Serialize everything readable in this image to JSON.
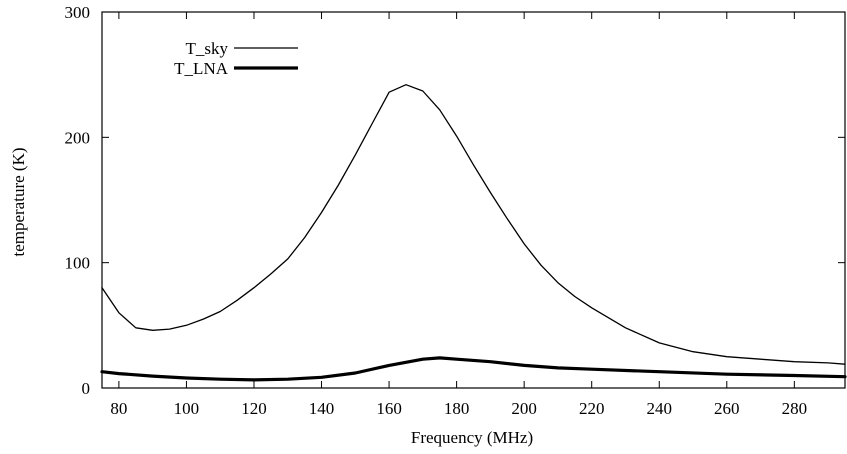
{
  "chart_data": {
    "type": "line",
    "title": "",
    "xlabel": "Frequency (MHz)",
    "ylabel": "temperature (K)",
    "xlim": [
      75,
      295
    ],
    "ylim": [
      0,
      300
    ],
    "xticks": [
      80,
      100,
      120,
      140,
      160,
      180,
      200,
      220,
      240,
      260,
      280
    ],
    "yticks": [
      0,
      100,
      200,
      300
    ],
    "grid": false,
    "legend_position": "top-left",
    "series": [
      {
        "name": "T_sky",
        "color": "#000000",
        "line_weight": "thin",
        "x": [
          75,
          80,
          85,
          90,
          95,
          100,
          105,
          110,
          115,
          120,
          125,
          130,
          135,
          140,
          145,
          150,
          155,
          160,
          165,
          170,
          175,
          180,
          185,
          190,
          195,
          200,
          205,
          210,
          215,
          220,
          230,
          240,
          250,
          260,
          270,
          280,
          290,
          295
        ],
        "y": [
          80,
          60,
          48,
          46,
          47,
          50,
          55,
          61,
          70,
          80,
          91,
          103,
          120,
          140,
          162,
          186,
          211,
          236,
          242,
          237,
          222,
          201,
          178,
          156,
          135,
          115,
          98,
          84,
          73,
          64,
          48,
          36,
          29,
          25,
          23,
          21,
          20,
          19
        ]
      },
      {
        "name": "T_LNA",
        "color": "#000000",
        "line_weight": "thick",
        "x": [
          75,
          80,
          90,
          100,
          110,
          120,
          130,
          140,
          150,
          160,
          170,
          175,
          180,
          190,
          200,
          210,
          220,
          240,
          260,
          280,
          295
        ],
        "y": [
          13,
          11.5,
          9.5,
          8,
          7,
          6.5,
          7,
          8.5,
          12,
          18,
          23,
          24,
          23,
          21,
          18,
          16,
          15,
          13,
          11,
          10,
          9
        ]
      }
    ]
  }
}
